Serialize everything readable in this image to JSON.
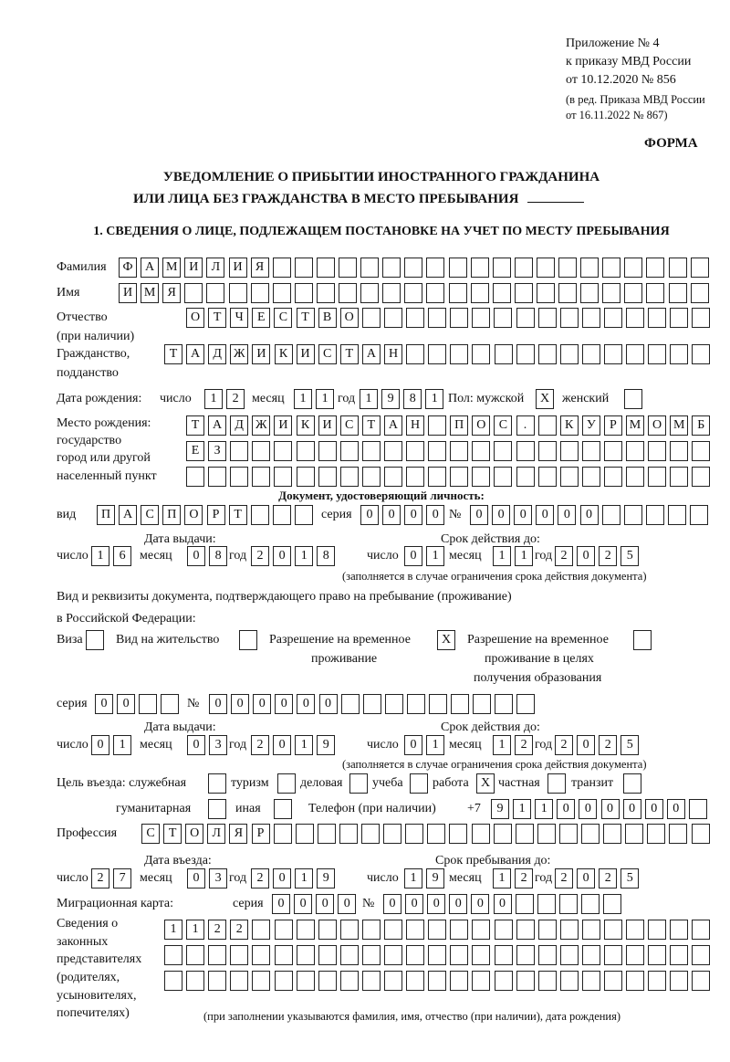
{
  "header": {
    "line1": "Приложение № 4",
    "line2": "к приказу МВД России",
    "line3": "от 10.12.2020 № 856",
    "line4": "(в ред. Приказа МВД России",
    "line5": "от 16.11.2022 № 867)",
    "forma": "ФОРМА"
  },
  "title": {
    "line1": "УВЕДОМЛЕНИЕ О ПРИБЫТИИ ИНОСТРАННОГО ГРАЖДАНИНА",
    "line2": "ИЛИ ЛИЦА БЕЗ ГРАЖДАНСТВА В МЕСТО ПРЕБЫВАНИЯ"
  },
  "section1": "1. СВЕДЕНИЯ О ЛИЦЕ, ПОДЛЕЖАЩЕМ ПОСТАНОВКЕ НА УЧЕТ ПО МЕСТУ ПРЕБЫВАНИЯ",
  "labels": {
    "surname": "Фамилия",
    "name": "Имя",
    "patronymic": "Отчество",
    "patronymic2": "(при наличии)",
    "citizenship": "Гражданство,",
    "citizenship2": "подданство",
    "birth_date": "Дата рождения:",
    "day": "число",
    "month": "месяц",
    "year": "год",
    "sex": "Пол: мужской",
    "female": "женский",
    "birthplace1": "Место рождения:",
    "birthplace2": "государство",
    "birthplace3": "город или другой",
    "birthplace4": "населенный пункт",
    "id_doc": "Документ, удостоверяющий личность:",
    "kind": "вид",
    "series": "серия",
    "number": "№",
    "issue_date": "Дата выдачи:",
    "valid_until": "Срок действия до:",
    "validity_note": "(заполняется в случае ограничения срока действия документа)",
    "right_doc1": "Вид и реквизиты документа, подтверждающего право на пребывание (проживание)",
    "right_doc2": "в Российской Федерации:",
    "visa": "Виза",
    "residence_permit": "Вид на жительство",
    "temp_permit1": "Разрешение на временное",
    "temp_permit2": "проживание",
    "edu_permit1": "Разрешение на временное",
    "edu_permit2": "проживание в целях",
    "edu_permit3": "получения образования",
    "purpose": "Цель въезда: служебная",
    "tourism": "туризм",
    "business": "деловая",
    "study": "учеба",
    "work": "работа",
    "private": "частная",
    "transit": "транзит",
    "humanitarian": "гуманитарная",
    "other": "иная",
    "phone": "Телефон (при наличии)",
    "phone_prefix": "+7",
    "profession": "Профессия",
    "entry_date": "Дата въезда:",
    "stay_until": "Срок пребывания до:",
    "migration_card": "Миграционная карта:",
    "reps1": "Сведения о",
    "reps2": "законных",
    "reps3": "представителях",
    "reps4": "(родителях,",
    "reps5": "усыновителях,",
    "reps6": "попечителях)",
    "reps_note": "(при заполнении указываются фамилия, имя, отчество (при наличии), дата рождения)"
  },
  "values": {
    "surname": "ФАМИЛИЯ",
    "name": "ИМЯ",
    "patronymic": "ОТЧЕСТВО",
    "citizenship": "ТАДЖИКИСТАН",
    "birth": {
      "day": "12",
      "month": "11",
      "year": "1981"
    },
    "sex_male": "X",
    "sex_female": "",
    "birthplace": [
      "ТАДЖИКИСТАН ПОС. КУРМОМБ",
      "ЕЗ",
      ""
    ],
    "id_kind": "ПАСПОРТ",
    "id_series": "0000",
    "id_number": "000000",
    "id_issue": {
      "day": "16",
      "month": "08",
      "year": "2018"
    },
    "id_valid": {
      "day": "01",
      "month": "11",
      "year": "2025"
    },
    "visa": "",
    "residence_permit": "",
    "temp_permit": "X",
    "edu_permit": "",
    "permit_series": "00",
    "permit_number": "000000",
    "permit_issue": {
      "day": "01",
      "month": "03",
      "year": "2019"
    },
    "permit_valid": {
      "day": "01",
      "month": "12",
      "year": "2025"
    },
    "purpose": {
      "official": "",
      "tourism": "",
      "business": "",
      "study": "",
      "work": "X",
      "private": "",
      "transit": "",
      "humanitarian": "",
      "other": ""
    },
    "phone": "911000000",
    "profession": "СТОЛЯР",
    "entry": {
      "day": "27",
      "month": "03",
      "year": "2019"
    },
    "stay_until": {
      "day": "19",
      "month": "12",
      "year": "2025"
    },
    "mig_series": "0000",
    "mig_number": "000000",
    "reps": [
      "1122",
      "",
      ""
    ]
  }
}
